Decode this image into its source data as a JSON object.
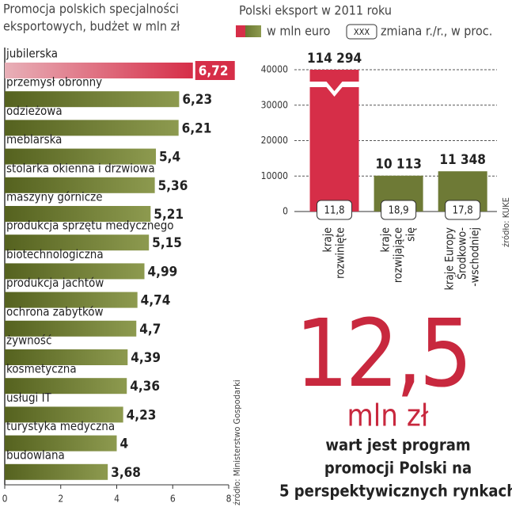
{
  "chart_data": [
    {
      "type": "hbar",
      "title_lines": [
        "Promocja polskich specjalności",
        "eksportowych, budżet w mln zł"
      ],
      "categories": [
        "jubilerska",
        "przemysł obronny",
        "odzieżowa",
        "meblarska",
        "stolarka okienna i drzwiowa",
        "maszyny górnicze",
        "produkcja sprzętu medycznego",
        "biotechnologiczna",
        "produkcja jachtów",
        "ochrona zabytków",
        "żywność",
        "kosmetyczna",
        "usługi IT",
        "turystyka medyczna",
        "budowlana"
      ],
      "values": [
        6.72,
        6.23,
        6.21,
        5.4,
        5.36,
        5.21,
        5.15,
        4.99,
        4.74,
        4.7,
        4.39,
        4.36,
        4.23,
        4,
        3.68
      ],
      "value_labels": [
        "6,72",
        "6,23",
        "6,21",
        "5,4",
        "5,36",
        "5,21",
        "5,15",
        "4,99",
        "4,74",
        "4,7",
        "4,39",
        "4,36",
        "4,23",
        "4",
        "3,68"
      ],
      "colors": [
        "#d62e48",
        "#6e7a36",
        "#6e7a36",
        "#6e7a36",
        "#6e7a36",
        "#6e7a36",
        "#6e7a36",
        "#6e7a36",
        "#6e7a36",
        "#6e7a36",
        "#6e7a36",
        "#6e7a36",
        "#6e7a36",
        "#6e7a36",
        "#6e7a36"
      ],
      "xlim": [
        0,
        8
      ],
      "xticks": [
        0,
        2,
        4,
        6,
        8
      ],
      "source": "źródło: Ministerstwo Gospodarki"
    },
    {
      "type": "bar",
      "title": "Polski eksport w 2011 roku",
      "legend": "w mln euro",
      "change_key": "XXX",
      "change_legend": "zmiana r./r., w proc.",
      "categories": [
        [
          "kraje",
          "rozwinięte"
        ],
        [
          "kraje",
          "rozwijające",
          "się"
        ],
        [
          "kraje Europy",
          "Środkowo-",
          "-wschodniej"
        ]
      ],
      "values": [
        114294,
        10113,
        11348
      ],
      "value_labels": [
        "114 294",
        "10 113",
        "11 348"
      ],
      "changes": [
        11.8,
        18.9,
        17.8
      ],
      "change_labels": [
        "11,8",
        "18,9",
        "17,8"
      ],
      "colors": [
        "#d62e48",
        "#6e7a36",
        "#6e7a36"
      ],
      "ylim": [
        0,
        40000
      ],
      "yticks": [
        0,
        10000,
        20000,
        30000,
        40000
      ],
      "grid": true,
      "source": "źródło: KUKE"
    }
  ],
  "annotation": {
    "big_number": "12,5",
    "unit": "mln zł",
    "text_lines": [
      "wart jest program",
      "promocji Polski na",
      "5 perspektywicznych rynkach"
    ]
  }
}
